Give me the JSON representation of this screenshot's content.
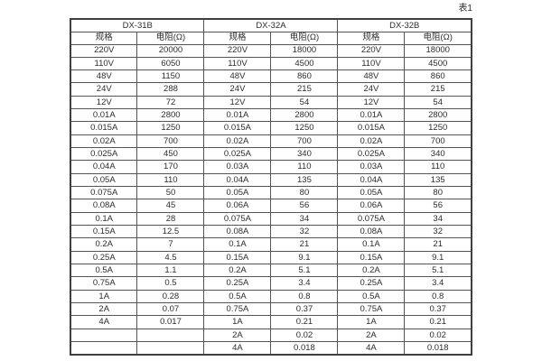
{
  "page": {
    "table_label": "表1",
    "background_color": "#ffffff",
    "border_color": "#555555",
    "outer_border_color": "#3f3f3f",
    "text_color": "#2d2d2d"
  },
  "table": {
    "groups": [
      {
        "name": "DX-31B"
      },
      {
        "name": "DX-32A"
      },
      {
        "name": "DX-32B"
      }
    ],
    "subheaders": {
      "spec": "规格",
      "resistance": "电阻(Ω)"
    },
    "rows": [
      [
        "220V",
        "20000",
        "220V",
        "18000",
        "220V",
        "18000"
      ],
      [
        "110V",
        "6050",
        "110V",
        "4500",
        "110V",
        "4500"
      ],
      [
        "48V",
        "1150",
        "48V",
        "860",
        "48V",
        "860"
      ],
      [
        "24V",
        "288",
        "24V",
        "215",
        "24V",
        "215"
      ],
      [
        "12V",
        "72",
        "12V",
        "54",
        "12V",
        "54"
      ],
      [
        "0.01A",
        "2800",
        "0.01A",
        "2800",
        "0.01A",
        "2800"
      ],
      [
        "0.015A",
        "1250",
        "0.015A",
        "1250",
        "0.015A",
        "1250"
      ],
      [
        "0.02A",
        "700",
        "0.02A",
        "700",
        "0.02A",
        "700"
      ],
      [
        "0.025A",
        "450",
        "0.025A",
        "340",
        "0.025A",
        "340"
      ],
      [
        "0.04A",
        "170",
        "0.03A",
        "110",
        "0.03A",
        "110"
      ],
      [
        "0.05A",
        "110",
        "0.04A",
        "135",
        "0.04A",
        "135"
      ],
      [
        "0.075A",
        "50",
        "0.05A",
        "80",
        "0.05A",
        "80"
      ],
      [
        "0.08A",
        "45",
        "0.06A",
        "56",
        "0.06A",
        "56"
      ],
      [
        "0.1A",
        "28",
        "0.075A",
        "34",
        "0.075A",
        "34"
      ],
      [
        "0.15A",
        "12.5",
        "0.08A",
        "32",
        "0.08A",
        "32"
      ],
      [
        "0.2A",
        "7",
        "0.1A",
        "21",
        "0.1A",
        "21"
      ],
      [
        "0.25A",
        "4.5",
        "0.15A",
        "9.1",
        "0.15A",
        "9.1"
      ],
      [
        "0.5A",
        "1.1",
        "0.2A",
        "5.1",
        "0.2A",
        "5.1"
      ],
      [
        "0.75A",
        "0.5",
        "0.25A",
        "3.4",
        "0.25A",
        "3.4"
      ],
      [
        "1A",
        "0.28",
        "0.5A",
        "0.8",
        "0.5A",
        "0.8"
      ],
      [
        "2A",
        "0.07",
        "0.75A",
        "0.37",
        "0.75A",
        "0.37"
      ],
      [
        "4A",
        "0.017",
        "1A",
        "0.21",
        "1A",
        "0.21"
      ],
      [
        "",
        "",
        "2A",
        "0.02",
        "2A",
        "0.02"
      ],
      [
        "",
        "",
        "4A",
        "0.018",
        "4A",
        "0.018"
      ]
    ]
  }
}
